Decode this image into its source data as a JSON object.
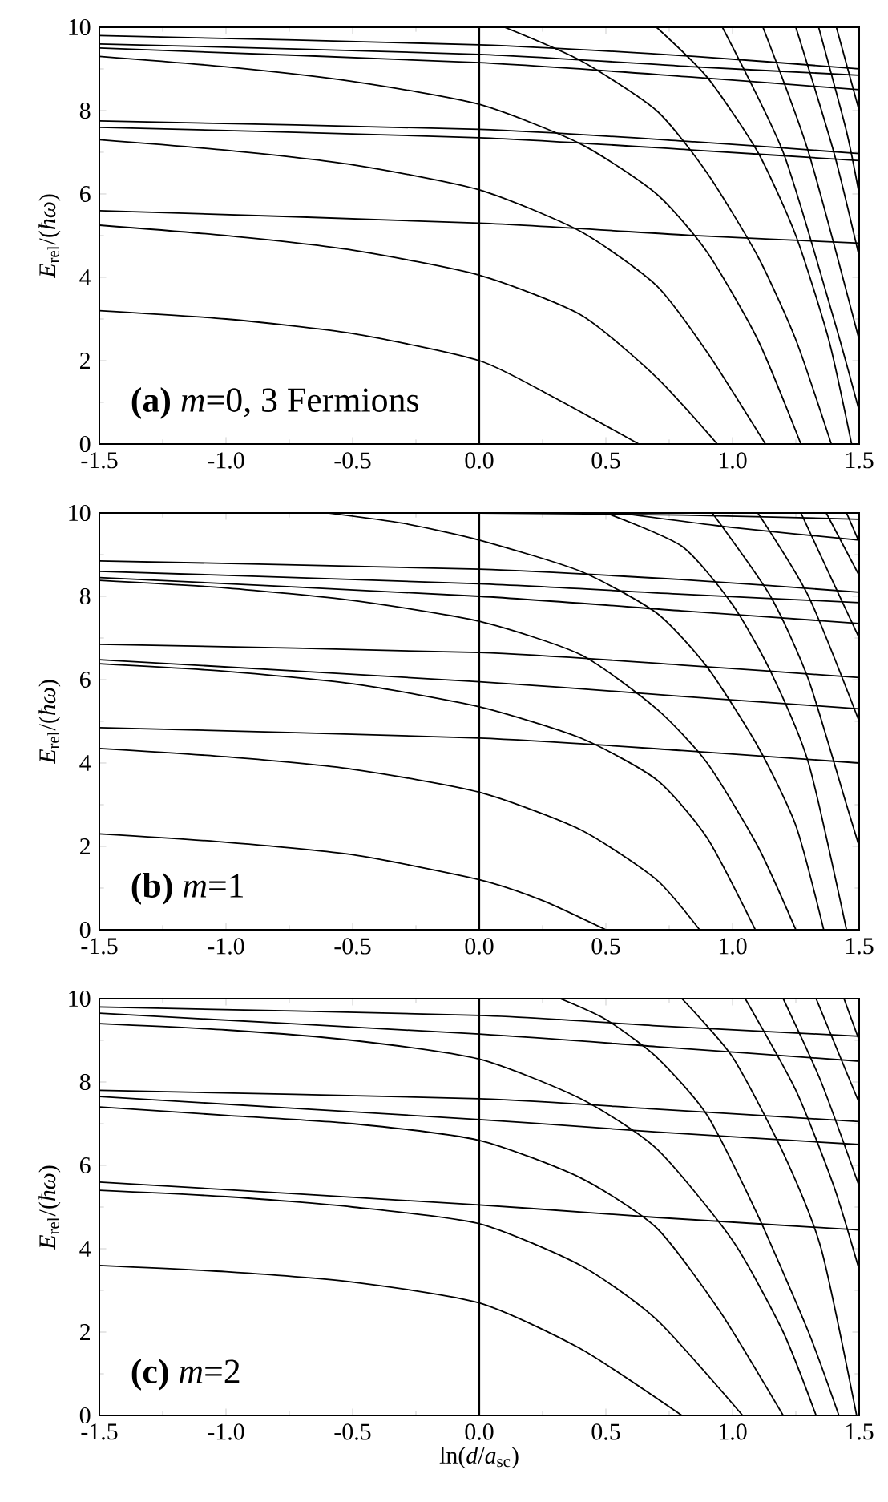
{
  "chart_data": [
    {
      "type": "line",
      "ylabel": "*E*$_{rel}$/(*ħω*)",
      "xlim": [
        -1.5,
        1.5
      ],
      "ylim": [
        0,
        10
      ],
      "xticks": [
        {
          "value": -1.5,
          "label": "-1.5"
        },
        {
          "value": -1,
          "label": "-1.0"
        },
        {
          "value": -0.5,
          "label": "-0.5"
        },
        {
          "value": 0,
          "label": "0.0"
        },
        {
          "value": 0.5,
          "label": "0.5"
        },
        {
          "value": 1,
          "label": "1.0"
        },
        {
          "value": 1.5,
          "label": "1.5"
        }
      ],
      "yticks": [
        0,
        2,
        4,
        6,
        8,
        10
      ],
      "grid": false,
      "line_style": "solid",
      "annotations": [
        "**(a)** *m*=0, 3 Fermions"
      ],
      "ref_lines": [
        {
          "axis": "x",
          "value": 0,
          "color": "#000000"
        }
      ],
      "series": [
        {
          "color": "#000000",
          "x": [
            -1.5,
            0,
            0.85,
            1.5
          ],
          "values": [
            5.6,
            5.3,
            5.0,
            4.82
          ]
        },
        {
          "color": "#000000",
          "x": [
            -1.5,
            0,
            0.85,
            1.5
          ],
          "values": [
            7.75,
            7.55,
            7.25,
            6.97
          ]
        },
        {
          "color": "#000000",
          "x": [
            -1.5,
            0,
            0.85,
            1.5
          ],
          "values": [
            7.6,
            7.35,
            7.05,
            6.8
          ]
        },
        {
          "color": "#000000",
          "x": [
            -1.5,
            0,
            0.85,
            1.5
          ],
          "values": [
            9.8,
            9.58,
            9.3,
            9.0
          ]
        },
        {
          "color": "#000000",
          "x": [
            -1.5,
            0,
            0.85,
            1.5
          ],
          "values": [
            9.6,
            9.35,
            9.05,
            8.85
          ]
        },
        {
          "color": "#000000",
          "x": [
            -1.5,
            0,
            0.85,
            1.5
          ],
          "values": [
            9.5,
            9.15,
            8.8,
            8.5
          ]
        },
        {
          "color": "#000000",
          "x": [
            -1.5,
            -1,
            -0.5,
            0,
            0.3,
            0.63
          ],
          "values": [
            3.2,
            3.0,
            2.65,
            2.0,
            1.1,
            0
          ]
        },
        {
          "color": "#000000",
          "x": [
            -1.5,
            -1,
            -0.5,
            0,
            0.4,
            0.7,
            0.94
          ],
          "values": [
            5.25,
            5.0,
            4.65,
            4.05,
            3.1,
            1.6,
            0
          ]
        },
        {
          "color": "#000000",
          "x": [
            -1.5,
            -1,
            -0.5,
            0,
            0.4,
            0.7,
            0.9,
            1.13
          ],
          "values": [
            7.3,
            7.05,
            6.7,
            6.1,
            5.1,
            3.8,
            2.2,
            0
          ]
        },
        {
          "color": "#000000",
          "x": [
            -1.5,
            -1,
            -0.5,
            0,
            0.4,
            0.7,
            0.9,
            1.1,
            1.27
          ],
          "values": [
            9.3,
            9.05,
            8.7,
            8.15,
            7.2,
            6.0,
            4.6,
            2.5,
            0
          ]
        },
        {
          "color": "#000000",
          "x": [
            0.1,
            0.4,
            0.7,
            0.9,
            1.1,
            1.25,
            1.39
          ],
          "values": [
            10,
            9.2,
            8.0,
            6.5,
            4.5,
            2.5,
            0
          ]
        },
        {
          "color": "#000000",
          "x": [
            0.7,
            0.9,
            1.1,
            1.25,
            1.38,
            1.47
          ],
          "values": [
            10,
            8.8,
            7.0,
            5.0,
            2.5,
            0
          ]
        },
        {
          "color": "#000000",
          "x": [
            0.96,
            1.2,
            1.4,
            1.5
          ],
          "values": [
            10,
            7.0,
            3.0,
            0.8
          ]
        },
        {
          "color": "#000000",
          "x": [
            1.12,
            1.3,
            1.5
          ],
          "values": [
            10,
            7.0,
            2.5
          ]
        },
        {
          "color": "#000000",
          "x": [
            1.25,
            1.4,
            1.5
          ],
          "values": [
            10,
            7.0,
            4.5
          ]
        },
        {
          "color": "#000000",
          "x": [
            1.34,
            1.45,
            1.5
          ],
          "values": [
            10,
            7.5,
            6.0
          ]
        },
        {
          "color": "#000000",
          "x": [
            1.41,
            1.5
          ],
          "values": [
            10,
            8.0
          ]
        }
      ]
    },
    {
      "type": "line",
      "ylabel": "*E*$_{rel}$/(*ħω*)",
      "xlim": [
        -1.5,
        1.5
      ],
      "ylim": [
        0,
        10
      ],
      "xticks": [
        {
          "value": -1.5,
          "label": "-1.5"
        },
        {
          "value": -1,
          "label": "-1.0"
        },
        {
          "value": -0.5,
          "label": "-0.5"
        },
        {
          "value": 0,
          "label": "0.0"
        },
        {
          "value": 0.5,
          "label": "0.5"
        },
        {
          "value": 1,
          "label": "1.0"
        },
        {
          "value": 1.5,
          "label": "1.5"
        }
      ],
      "yticks": [
        0,
        2,
        4,
        6,
        8,
        10
      ],
      "grid": false,
      "line_style": "solid",
      "annotations": [
        "**(b)** *m*=1"
      ],
      "ref_lines": [
        {
          "axis": "x",
          "value": 0,
          "color": "#000000"
        }
      ],
      "series": [
        {
          "color": "#000000",
          "x": [
            -1.5,
            0,
            0.8,
            1.5
          ],
          "values": [
            4.85,
            4.6,
            4.3,
            4.0
          ]
        },
        {
          "color": "#000000",
          "x": [
            -1.5,
            0,
            0.8,
            1.5
          ],
          "values": [
            6.48,
            5.95,
            5.6,
            5.3
          ]
        },
        {
          "color": "#000000",
          "x": [
            -1.5,
            0,
            0.8,
            1.5
          ],
          "values": [
            6.85,
            6.65,
            6.35,
            6.05
          ]
        },
        {
          "color": "#000000",
          "x": [
            -1.5,
            0,
            0.8,
            1.5
          ],
          "values": [
            8.45,
            8.0,
            7.65,
            7.35
          ]
        },
        {
          "color": "#000000",
          "x": [
            -1.5,
            0,
            0.8,
            1.5
          ],
          "values": [
            8.6,
            8.3,
            8.05,
            7.85
          ]
        },
        {
          "color": "#000000",
          "x": [
            -1.5,
            0,
            0.8,
            1.5
          ],
          "values": [
            8.85,
            8.65,
            8.4,
            8.1
          ]
        },
        {
          "color": "#000000",
          "x": [
            0,
            0.8,
            1.5
          ],
          "values": [
            10,
            9.95,
            9.85
          ]
        },
        {
          "color": "#000000",
          "x": [
            0.55,
            1.0,
            1.5
          ],
          "values": [
            10,
            9.65,
            9.35
          ]
        },
        {
          "color": "#000000",
          "x": [
            -1.5,
            -1,
            -0.5,
            0,
            0.25,
            0.5
          ],
          "values": [
            2.3,
            2.1,
            1.8,
            1.2,
            0.7,
            0
          ]
        },
        {
          "color": "#000000",
          "x": [
            -1.5,
            -1,
            -0.5,
            0,
            0.4,
            0.7,
            0.87
          ],
          "values": [
            4.35,
            4.15,
            3.85,
            3.3,
            2.4,
            1.2,
            0
          ]
        },
        {
          "color": "#000000",
          "x": [
            -1.5,
            -1,
            -0.5,
            0,
            0.4,
            0.7,
            0.9,
            1.09
          ],
          "values": [
            6.38,
            6.2,
            5.9,
            5.35,
            4.6,
            3.6,
            2.2,
            0
          ]
        },
        {
          "color": "#000000",
          "x": [
            -1.5,
            -1,
            -0.5,
            0,
            0.4,
            0.7,
            0.9,
            1.1,
            1.25
          ],
          "values": [
            8.38,
            8.2,
            7.9,
            7.4,
            6.6,
            5.3,
            4.0,
            2.0,
            0
          ]
        },
        {
          "color": "#000000",
          "x": [
            -0.6,
            -0.3,
            0,
            0.4,
            0.7,
            0.9,
            1.1,
            1.25,
            1.36
          ],
          "values": [
            10,
            9.75,
            9.35,
            8.6,
            7.6,
            6.3,
            4.4,
            2.5,
            0
          ]
        },
        {
          "color": "#000000",
          "x": [
            0.5,
            0.8,
            1.0,
            1.15,
            1.3,
            1.45
          ],
          "values": [
            10,
            9.2,
            7.8,
            6.2,
            4.0,
            0
          ]
        },
        {
          "color": "#000000",
          "x": [
            0.92,
            1.15,
            1.3,
            1.45,
            1.5
          ],
          "values": [
            10,
            8.0,
            6.0,
            3.0,
            2.0
          ]
        },
        {
          "color": "#000000",
          "x": [
            1.1,
            1.3,
            1.5
          ],
          "values": [
            10,
            8.0,
            5.0
          ]
        },
        {
          "color": "#000000",
          "x": [
            1.27,
            1.4,
            1.5
          ],
          "values": [
            10,
            8.3,
            7.0
          ]
        },
        {
          "color": "#000000",
          "x": [
            1.37,
            1.5
          ],
          "values": [
            10,
            8.5
          ]
        },
        {
          "color": "#000000",
          "x": [
            1.45,
            1.5
          ],
          "values": [
            10,
            9.3
          ]
        }
      ]
    },
    {
      "type": "line",
      "xlabel": "ln(*d*/*a*$_{sc}$)",
      "ylabel": "*E*$_{rel}$/(*ħω*)",
      "xlim": [
        -1.5,
        1.5
      ],
      "ylim": [
        0,
        10
      ],
      "xticks": [
        {
          "value": -1.5,
          "label": "-1.5"
        },
        {
          "value": -1,
          "label": "-1.0"
        },
        {
          "value": -0.5,
          "label": "-0.5"
        },
        {
          "value": 0,
          "label": "0.0"
        },
        {
          "value": 0.5,
          "label": "0.5"
        },
        {
          "value": 1,
          "label": "1.0"
        },
        {
          "value": 1.5,
          "label": "1.5"
        }
      ],
      "yticks": [
        0,
        2,
        4,
        6,
        8,
        10
      ],
      "grid": false,
      "line_style": "solid",
      "annotations": [
        "**(c)** *m*=2"
      ],
      "ref_lines": [
        {
          "axis": "x",
          "value": 0,
          "color": "#000000"
        }
      ],
      "series": [
        {
          "color": "#000000",
          "x": [
            -1.5,
            0,
            0.7,
            1.5
          ],
          "values": [
            5.6,
            5.05,
            4.75,
            4.45
          ]
        },
        {
          "color": "#000000",
          "x": [
            -1.5,
            0,
            0.7,
            1.5
          ],
          "values": [
            7.8,
            7.6,
            7.35,
            7.05
          ]
        },
        {
          "color": "#000000",
          "x": [
            -1.5,
            0,
            0.7,
            1.5
          ],
          "values": [
            7.65,
            7.1,
            6.8,
            6.5
          ]
        },
        {
          "color": "#000000",
          "x": [
            -1.5,
            0,
            0.7,
            1.5
          ],
          "values": [
            9.8,
            9.6,
            9.35,
            9.1
          ]
        },
        {
          "color": "#000000",
          "x": [
            -1.5,
            0,
            0.7,
            1.5
          ],
          "values": [
            9.65,
            9.15,
            8.85,
            8.5
          ]
        },
        {
          "color": "#000000",
          "x": [
            -1.5,
            -1,
            -0.5,
            0,
            0.4,
            0.8
          ],
          "values": [
            3.6,
            3.45,
            3.2,
            2.7,
            1.6,
            0
          ]
        },
        {
          "color": "#000000",
          "x": [
            -1.5,
            -1,
            -0.5,
            0,
            0.4,
            0.7,
            1.04
          ],
          "values": [
            5.4,
            5.25,
            5.0,
            4.6,
            3.6,
            2.3,
            0
          ]
        },
        {
          "color": "#000000",
          "x": [
            -1.5,
            -1,
            -0.5,
            0,
            0.4,
            0.7,
            0.95,
            1.2
          ],
          "values": [
            7.4,
            7.2,
            7.0,
            6.6,
            5.7,
            4.5,
            2.5,
            0
          ]
        },
        {
          "color": "#000000",
          "x": [
            -1.5,
            -1,
            -0.5,
            0,
            0.4,
            0.7,
            1.0,
            1.2,
            1.33
          ],
          "values": [
            9.4,
            9.25,
            9.0,
            8.55,
            7.6,
            6.4,
            4.2,
            2.0,
            0
          ]
        },
        {
          "color": "#000000",
          "x": [
            0.32,
            0.5,
            0.7,
            0.9,
            1.1,
            1.3,
            1.42
          ],
          "values": [
            10,
            9.5,
            8.6,
            7.2,
            4.8,
            2.0,
            0
          ]
        },
        {
          "color": "#000000",
          "x": [
            0.8,
            1.0,
            1.2,
            1.35,
            1.49
          ],
          "values": [
            10,
            8.6,
            6.3,
            4.0,
            0
          ]
        },
        {
          "color": "#000000",
          "x": [
            1.05,
            1.25,
            1.4,
            1.5
          ],
          "values": [
            10,
            7.8,
            5.5,
            3.5
          ]
        },
        {
          "color": "#000000",
          "x": [
            1.2,
            1.35,
            1.5
          ],
          "values": [
            10,
            8.0,
            5.5
          ]
        },
        {
          "color": "#000000",
          "x": [
            1.33,
            1.5
          ],
          "values": [
            10,
            7.5
          ]
        },
        {
          "color": "#000000",
          "x": [
            1.44,
            1.5
          ],
          "values": [
            10,
            9.0
          ]
        }
      ]
    }
  ]
}
